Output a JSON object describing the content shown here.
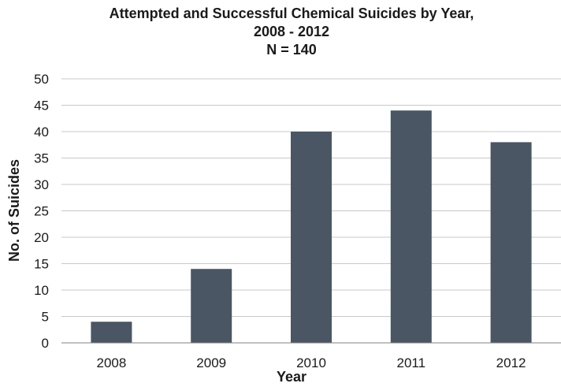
{
  "chart_data": {
    "type": "bar",
    "title_lines": [
      "Attempted and Successful Chemical Suicides by Year,",
      "2008 - 2012",
      "N = 140"
    ],
    "xlabel": "Year",
    "ylabel": "No. of Suicides",
    "categories": [
      "2008",
      "2009",
      "2010",
      "2011",
      "2012"
    ],
    "values": [
      4,
      14,
      40,
      44,
      38
    ],
    "ylim": [
      0,
      50
    ],
    "yticks": [
      "0",
      "5",
      "10",
      "15",
      "20",
      "25",
      "30",
      "35",
      "40",
      "45",
      "50"
    ],
    "grid": true,
    "legend": "none",
    "bar_color": "#4a5663"
  }
}
